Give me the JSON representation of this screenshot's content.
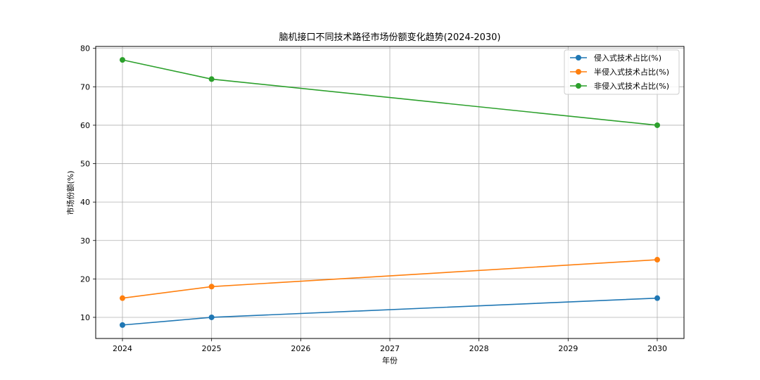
{
  "chart_data": {
    "type": "line",
    "title": "脑机接口不同技术路径市场份额变化趋势(2024-2030)",
    "xlabel": "年份",
    "ylabel": "市场份额(%)",
    "x_ticks": [
      2024,
      2025,
      2026,
      2027,
      2028,
      2029,
      2030
    ],
    "y_ticks": [
      10,
      20,
      30,
      40,
      50,
      60,
      70,
      80
    ],
    "xlim": [
      2023.7,
      2030.3
    ],
    "ylim": [
      4.5,
      80.5
    ],
    "grid": true,
    "legend_position": "top-right",
    "series": [
      {
        "name": "侵入式技术占比(%)",
        "color": "#1f77b4",
        "x": [
          2024,
          2025,
          2030
        ],
        "values": [
          8,
          10,
          15
        ]
      },
      {
        "name": "半侵入式技术占比(%)",
        "color": "#ff7f0e",
        "x": [
          2024,
          2025,
          2030
        ],
        "values": [
          15,
          18,
          25
        ]
      },
      {
        "name": "非侵入式技术占比(%)",
        "color": "#2ca02c",
        "x": [
          2024,
          2025,
          2030
        ],
        "values": [
          77,
          72,
          60
        ]
      }
    ]
  }
}
